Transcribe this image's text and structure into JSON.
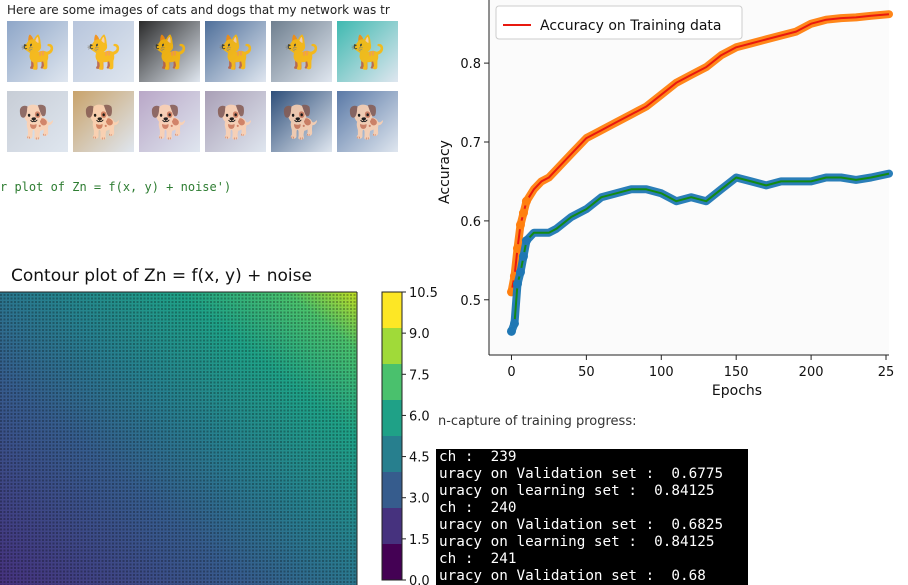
{
  "cats_dogs_panel": {
    "caption": "Here are some images of cats and dogs that my network was tr",
    "thumbnails": [
      {
        "label": "cat",
        "icon": "cat-icon",
        "color": "#8ea6c8"
      },
      {
        "label": "cat",
        "icon": "cat-icon",
        "color": "#b7c5dc"
      },
      {
        "label": "cat",
        "icon": "cat-icon",
        "color": "#2b2b2b"
      },
      {
        "label": "cat",
        "icon": "cat-icon",
        "color": "#4f6f9a"
      },
      {
        "label": "cat",
        "icon": "cat-icon",
        "color": "#6f7f8f"
      },
      {
        "label": "cat",
        "icon": "cat-icon",
        "color": "#3fb9b0"
      },
      {
        "label": "dog",
        "icon": "dog-icon",
        "color": "#c7cdd6"
      },
      {
        "label": "dog",
        "icon": "dog-icon",
        "color": "#c9a36b"
      },
      {
        "label": "dog",
        "icon": "dog-icon",
        "color": "#b9a7c7"
      },
      {
        "label": "dog",
        "icon": "dog-icon",
        "color": "#a99fb6"
      },
      {
        "label": "dog",
        "icon": "dog-icon",
        "color": "#2f4f7a"
      },
      {
        "label": "dog",
        "icon": "dog-icon",
        "color": "#5a79a6"
      }
    ]
  },
  "code_line": "r plot of Zn = f(x, y) + noise')",
  "contour": {
    "title": "Contour plot of Zn = f(x, y) + noise",
    "colorbar_ticks": [
      "10.5",
      "9.0",
      "7.5",
      "6.0",
      "4.5",
      "3.0",
      "1.5",
      "0.0"
    ],
    "colors": [
      "#440154",
      "#46327e",
      "#365c8d",
      "#277f8e",
      "#1fa187",
      "#4ac16d",
      "#a0da39",
      "#fde725"
    ]
  },
  "chart_data": {
    "type": "line",
    "title": "",
    "xlabel": "Epochs",
    "ylabel": "Accuracy",
    "xlim": [
      -15,
      252
    ],
    "ylim": [
      0.43,
      0.88
    ],
    "x_ticks": [
      "0",
      "50",
      "100",
      "150",
      "200",
      "25"
    ],
    "y_ticks": [
      "0.5",
      "0.6",
      "0.7",
      "0.8"
    ],
    "legend": {
      "entry": "Accuracy on Training data",
      "placement": "top-left"
    },
    "series": [
      {
        "name": "Accuracy on Training data",
        "line_color": "#e8190f",
        "marker_color": "#ff7f0e",
        "x": [
          0,
          2,
          4,
          6,
          8,
          10,
          15,
          20,
          25,
          30,
          40,
          50,
          60,
          70,
          80,
          90,
          100,
          110,
          120,
          130,
          140,
          150,
          160,
          170,
          180,
          190,
          200,
          210,
          220,
          230,
          240,
          252
        ],
        "y": [
          0.51,
          0.53,
          0.565,
          0.595,
          0.61,
          0.625,
          0.64,
          0.65,
          0.655,
          0.665,
          0.685,
          0.705,
          0.715,
          0.725,
          0.735,
          0.745,
          0.76,
          0.775,
          0.785,
          0.795,
          0.81,
          0.82,
          0.825,
          0.83,
          0.835,
          0.84,
          0.85,
          0.855,
          0.857,
          0.858,
          0.86,
          0.862
        ]
      },
      {
        "name": "",
        "line_color": "#138a13",
        "marker_color": "#1f77b4",
        "x": [
          0,
          2,
          4,
          6,
          8,
          10,
          15,
          20,
          25,
          30,
          40,
          50,
          60,
          70,
          80,
          90,
          100,
          110,
          120,
          130,
          140,
          150,
          160,
          170,
          180,
          190,
          200,
          210,
          220,
          230,
          240,
          252
        ],
        "y": [
          0.46,
          0.47,
          0.52,
          0.535,
          0.555,
          0.575,
          0.585,
          0.585,
          0.585,
          0.59,
          0.605,
          0.615,
          0.63,
          0.635,
          0.64,
          0.64,
          0.635,
          0.625,
          0.63,
          0.625,
          0.64,
          0.655,
          0.65,
          0.645,
          0.65,
          0.65,
          0.65,
          0.655,
          0.655,
          0.652,
          0.655,
          0.66
        ]
      }
    ]
  },
  "capture_text": "n-capture of training progress:",
  "terminal": {
    "lines": [
      "ch :  239",
      "uracy on Validation set :  0.6775",
      "uracy on learning set :  0.84125",
      "ch :  240",
      "uracy on Validation set :  0.6825",
      "uracy on learning set :  0.84125",
      "ch :  241",
      "uracy on Validation set :  0.68"
    ]
  }
}
